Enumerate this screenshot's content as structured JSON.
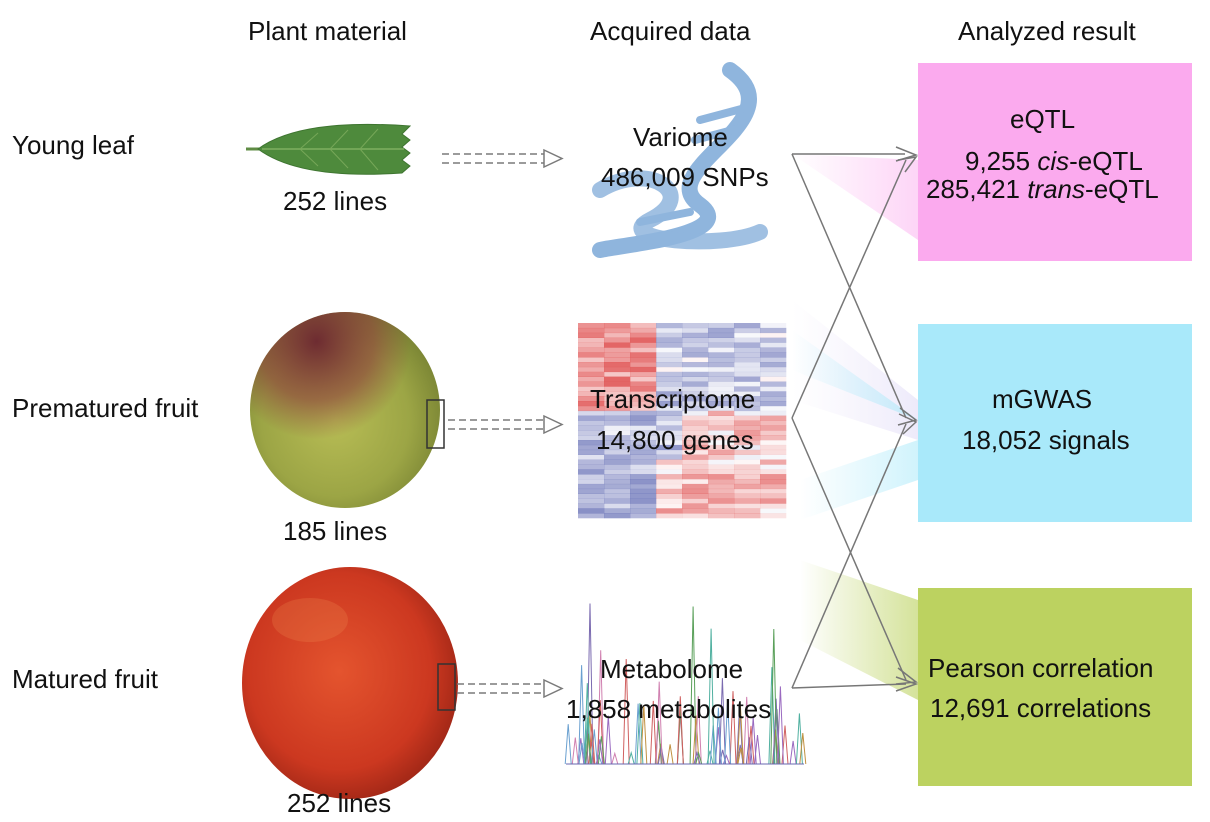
{
  "headers": {
    "plant_material": "Plant material",
    "acquired_data": "Acquired data",
    "analyzed_result": "Analyzed result"
  },
  "rows": [
    {
      "tissue": "Young leaf",
      "lines": "252 lines",
      "data_title": "Variome",
      "data_count": "486,009 SNPs"
    },
    {
      "tissue": "Prematured fruit",
      "lines": "185 lines",
      "data_title": "Transcriptome",
      "data_count": "14,800 genes"
    },
    {
      "tissue": "Matured fruit",
      "lines": "252 lines",
      "data_title": "Metabolome",
      "data_count": "1,858 metabolites"
    }
  ],
  "results": {
    "eqtl": {
      "title": "eQTL",
      "cis_number": "9,255",
      "cis_italic": "cis",
      "cis_suffix": "-eQTL",
      "trans_number": "285,421",
      "trans_italic": "trans",
      "trans_suffix": "-eQTL",
      "color": "#fbaaee"
    },
    "mgwas": {
      "title": "mGWAS",
      "count": "18,052 signals",
      "color": "#a9e9fa"
    },
    "pearson": {
      "title": "Pearson correlation",
      "count": "12,691 correlations",
      "color": "#bcd260"
    }
  },
  "colors": {
    "leaf": "#4e8a3c",
    "dna": "#8fb5dd",
    "heatmap_red": "#e05555",
    "heatmap_blue": "#6b74b8",
    "fruit_green": "#a8b048",
    "fruit_red": "#d23a22"
  }
}
